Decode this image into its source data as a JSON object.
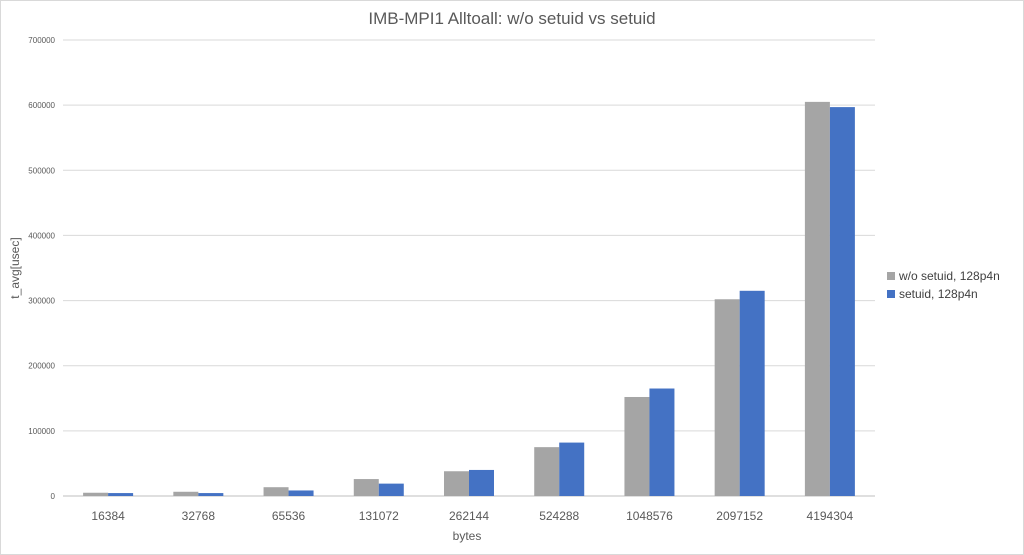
{
  "chart_data": {
    "type": "bar",
    "title": "IMB-MPI1 Alltoall: w/o setuid vs setuid",
    "xlabel": "bytes",
    "ylabel": "t_avg[usec]",
    "ylim": [
      0,
      700000
    ],
    "yticks": [
      0,
      100000,
      200000,
      300000,
      400000,
      500000,
      600000,
      700000
    ],
    "grid": true,
    "legend_position": "right",
    "categories": [
      "16384",
      "32768",
      "65536",
      "131072",
      "262144",
      "524288",
      "1048576",
      "2097152",
      "4194304"
    ],
    "series": [
      {
        "name": "w/o setuid, 128p4n",
        "color": "#a5a5a5",
        "values": [
          5000,
          6500,
          13500,
          26000,
          38000,
          75000,
          152000,
          302000,
          605000
        ]
      },
      {
        "name": "setuid, 128p4n",
        "color": "#4472c4",
        "values": [
          4500,
          4500,
          8500,
          19000,
          40000,
          82000,
          165000,
          315000,
          597000
        ]
      }
    ]
  }
}
